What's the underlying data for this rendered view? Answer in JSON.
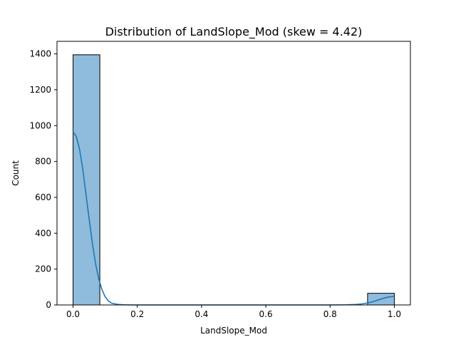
{
  "chart_data": {
    "type": "bar",
    "title": "Distribution of LandSlope_Mod (skew = 4.42)",
    "xlabel": "LandSlope_Mod",
    "ylabel": "Count",
    "xlim": [
      -0.05,
      1.05
    ],
    "ylim": [
      0,
      1470
    ],
    "xticks": [
      0.0,
      0.2,
      0.4,
      0.6,
      0.8,
      1.0
    ],
    "xtick_labels": [
      "0.0",
      "0.2",
      "0.4",
      "0.6",
      "0.8",
      "1.0"
    ],
    "yticks": [
      0,
      200,
      400,
      600,
      800,
      1000,
      1200,
      1400
    ],
    "ytick_labels": [
      "0",
      "200",
      "400",
      "600",
      "800",
      "1000",
      "1200",
      "1400"
    ],
    "bins": [
      {
        "x0": 0.0,
        "x1": 0.0833,
        "count": 1395
      },
      {
        "x0": 0.9167,
        "x1": 1.0,
        "count": 65
      }
    ],
    "kde": {
      "x": [
        0.0,
        0.01,
        0.02,
        0.03,
        0.04,
        0.05,
        0.06,
        0.07,
        0.08,
        0.09,
        0.1,
        0.11,
        0.12,
        0.14,
        0.16,
        0.18,
        0.2,
        0.25,
        0.3,
        0.4,
        0.5,
        0.6,
        0.7,
        0.8,
        0.85,
        0.88,
        0.9,
        0.92,
        0.94,
        0.96,
        0.98,
        1.0
      ],
      "y": [
        965,
        940,
        870,
        760,
        620,
        480,
        345,
        230,
        145,
        85,
        45,
        22,
        10,
        3,
        1,
        0,
        0,
        0,
        0,
        0,
        0,
        0,
        0,
        0,
        1,
        3,
        6,
        12,
        22,
        34,
        44,
        48
      ]
    },
    "colors": {
      "bar_fill": "#8fbcdc",
      "bar_edge": "#000000",
      "kde_line": "#1f77b4"
    },
    "grid": false
  }
}
